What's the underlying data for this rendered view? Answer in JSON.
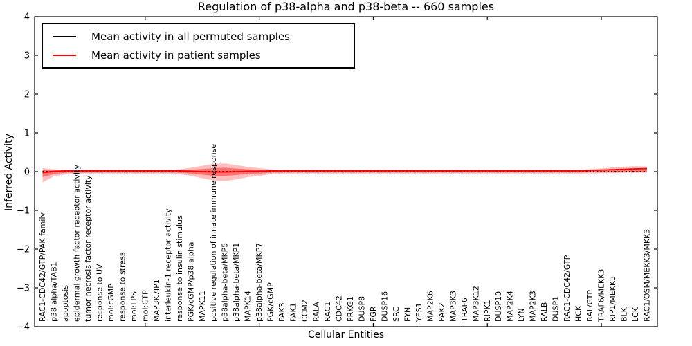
{
  "chart_data": {
    "type": "line",
    "title": "Regulation of p38-alpha and p38-beta -- 660 samples",
    "xlabel": "Cellular Entities",
    "ylabel": "Inferred Activity",
    "ylim": [
      -4,
      4
    ],
    "yticks": [
      4,
      3,
      2,
      1,
      0,
      -1,
      -2,
      -3,
      -4
    ],
    "xticks_major": [
      10,
      20,
      30,
      40,
      50
    ],
    "grid": false,
    "legend_position": "upper left",
    "axis_color": "#000000",
    "categories": [
      "RAC1-CDC42/GTP/PAK family",
      "p38 alpha/TAB1",
      "apoptosis",
      "epidermal growth factor receptor activity",
      "tumor necrosis factor receptor activity",
      "response to UV",
      "mol:cGMP",
      "response to stress",
      "mol:LPS",
      "mol:GTP",
      "MAP3K7IP1",
      "interleukin-1 receptor activity",
      "response to insulin stimulus",
      "PGK/cGMP/p38 alpha",
      "MAPK11",
      "positive regulation of innate immune response",
      "p38alpha-beta/MKP5",
      "p38alpha-beta/MKP1",
      "MAPK14",
      "p38alpha-beta/MKP7",
      "PGK/cGMP",
      "PAK3",
      "PAK1",
      "CCM2",
      "RALA",
      "RAC1",
      "CDC42",
      "PRKG1",
      "DUSP8",
      "FGR",
      "DUSP16",
      "SRC",
      "FYN",
      "YES1",
      "MAP2K6",
      "PAK2",
      "MAP3K3",
      "TRAF6",
      "MAP3K12",
      "RIPK1",
      "DUSP10",
      "MAP2K4",
      "LYN",
      "MAP2K3",
      "RALB",
      "DUSP1",
      "RAC1-CDC42/GTP",
      "HCK",
      "RAL/GTP",
      "TRAF6/MEKK3",
      "RIP1/MEKK3",
      "BLK",
      "LCK",
      "RAC1/OSM/MEKK3/MKK3"
    ],
    "series": [
      {
        "name": "Mean activity in all permuted samples",
        "color": "#000000",
        "style": "dotted",
        "values": [
          0,
          0,
          0,
          0,
          0,
          0,
          0,
          0,
          0,
          0,
          0,
          0,
          0,
          0,
          0,
          0,
          0,
          0,
          0,
          0,
          0,
          0,
          0,
          0,
          0,
          0,
          0,
          0,
          0,
          0,
          0,
          0,
          0,
          0,
          0,
          0,
          0,
          0,
          0,
          0,
          0,
          0,
          0,
          0,
          0,
          0,
          0,
          0,
          0,
          0,
          0,
          0,
          0,
          0
        ]
      },
      {
        "name": "Mean activity in patient samples",
        "color": "#ff0000",
        "style": "solid",
        "values": [
          -0.03,
          0.01,
          0.02,
          0.02,
          0.02,
          0.02,
          0.02,
          0.02,
          0.02,
          0.02,
          0.02,
          0.02,
          0.02,
          0.01,
          0,
          -0.01,
          -0.01,
          0,
          0.01,
          0.01,
          0.02,
          0.02,
          0.02,
          0.02,
          0.02,
          0.02,
          0.02,
          0.02,
          0.02,
          0.02,
          0.02,
          0.02,
          0.02,
          0.02,
          0.02,
          0.02,
          0.02,
          0.02,
          0.02,
          0.02,
          0.02,
          0.02,
          0.02,
          0.02,
          0.02,
          0.02,
          0.02,
          0.02,
          0.03,
          0.04,
          0.05,
          0.06,
          0.07,
          0.08
        ]
      }
    ],
    "bands": [
      {
        "name": "patient-activity-spread-outer",
        "color": "rgba(255,0,0,0.25)",
        "low": [
          -0.28,
          -0.12,
          -0.07,
          -0.05,
          -0.05,
          -0.05,
          -0.05,
          -0.05,
          -0.05,
          -0.05,
          -0.05,
          -0.05,
          -0.07,
          -0.11,
          -0.17,
          -0.23,
          -0.24,
          -0.2,
          -0.14,
          -0.11,
          -0.07,
          -0.05,
          -0.05,
          -0.05,
          -0.05,
          -0.05,
          -0.05,
          -0.05,
          -0.05,
          -0.05,
          -0.05,
          -0.05,
          -0.05,
          -0.05,
          -0.05,
          -0.05,
          -0.05,
          -0.05,
          -0.05,
          -0.05,
          -0.05,
          -0.05,
          -0.05,
          -0.05,
          -0.05,
          -0.05,
          -0.05,
          -0.05,
          -0.05,
          -0.04,
          -0.04,
          -0.03,
          -0.03,
          -0.03
        ],
        "high": [
          0.09,
          0.06,
          0.05,
          0.045,
          0.045,
          0.045,
          0.045,
          0.045,
          0.045,
          0.045,
          0.045,
          0.045,
          0.06,
          0.1,
          0.15,
          0.2,
          0.21,
          0.17,
          0.12,
          0.09,
          0.06,
          0.045,
          0.045,
          0.045,
          0.045,
          0.045,
          0.045,
          0.045,
          0.045,
          0.045,
          0.045,
          0.045,
          0.045,
          0.045,
          0.045,
          0.045,
          0.045,
          0.045,
          0.045,
          0.045,
          0.045,
          0.045,
          0.045,
          0.045,
          0.045,
          0.045,
          0.045,
          0.05,
          0.06,
          0.08,
          0.11,
          0.13,
          0.14,
          0.13
        ]
      },
      {
        "name": "patient-activity-spread-inner",
        "color": "rgba(255,0,0,0.4)",
        "low": [
          -0.14,
          -0.06,
          -0.03,
          -0.025,
          -0.025,
          -0.025,
          -0.025,
          -0.025,
          -0.025,
          -0.025,
          -0.025,
          -0.025,
          -0.03,
          -0.05,
          -0.08,
          -0.11,
          -0.11,
          -0.09,
          -0.06,
          -0.05,
          -0.03,
          -0.025,
          -0.025,
          -0.025,
          -0.025,
          -0.025,
          -0.025,
          -0.025,
          -0.025,
          -0.025,
          -0.025,
          -0.025,
          -0.025,
          -0.025,
          -0.025,
          -0.025,
          -0.025,
          -0.025,
          -0.025,
          -0.025,
          -0.025,
          -0.025,
          -0.025,
          -0.025,
          -0.025,
          -0.025,
          -0.025,
          -0.025,
          -0.02,
          -0.02,
          -0.02,
          -0.02,
          -0.02,
          -0.02
        ],
        "high": [
          0.05,
          0.03,
          0.022,
          0.022,
          0.022,
          0.022,
          0.022,
          0.022,
          0.022,
          0.022,
          0.022,
          0.022,
          0.03,
          0.05,
          0.07,
          0.09,
          0.1,
          0.08,
          0.06,
          0.04,
          0.03,
          0.022,
          0.022,
          0.022,
          0.022,
          0.022,
          0.022,
          0.022,
          0.022,
          0.022,
          0.022,
          0.022,
          0.022,
          0.022,
          0.022,
          0.022,
          0.022,
          0.022,
          0.022,
          0.022,
          0.022,
          0.022,
          0.022,
          0.022,
          0.022,
          0.022,
          0.022,
          0.03,
          0.035,
          0.045,
          0.06,
          0.07,
          0.08,
          0.07
        ]
      }
    ]
  },
  "legend": {
    "items": [
      {
        "label": "Mean activity in all permuted samples",
        "color": "#000000"
      },
      {
        "label": "Mean activity in patient samples",
        "color": "#ff0000"
      }
    ]
  }
}
